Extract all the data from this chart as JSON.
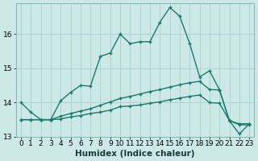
{
  "xlabel": "Humidex (Indice chaleur)",
  "background_color": "#cce9e5",
  "grid_color": "#aad4cf",
  "line_color": "#1a7a6e",
  "x_values": [
    0,
    1,
    2,
    3,
    4,
    5,
    6,
    7,
    8,
    9,
    10,
    11,
    12,
    13,
    14,
    15,
    16,
    17,
    18,
    19,
    20,
    21,
    22,
    23
  ],
  "line1": [
    14.0,
    13.72,
    13.5,
    13.5,
    14.05,
    14.3,
    14.5,
    14.48,
    15.35,
    15.45,
    16.0,
    15.72,
    15.78,
    15.78,
    16.35,
    16.78,
    16.52,
    15.72,
    14.75,
    14.93,
    14.37,
    13.47,
    13.08,
    13.38
  ],
  "line2": [
    13.5,
    13.5,
    13.5,
    13.5,
    13.6,
    13.68,
    13.75,
    13.82,
    13.92,
    14.02,
    14.12,
    14.18,
    14.25,
    14.32,
    14.38,
    14.45,
    14.52,
    14.58,
    14.62,
    14.38,
    14.37,
    13.47,
    13.38,
    13.38
  ],
  "line3": [
    13.5,
    13.5,
    13.5,
    13.5,
    13.52,
    13.58,
    13.62,
    13.68,
    13.72,
    13.78,
    13.88,
    13.9,
    13.93,
    13.98,
    14.02,
    14.08,
    14.13,
    14.18,
    14.22,
    14.0,
    13.98,
    13.47,
    13.35,
    13.35
  ],
  "ylim": [
    13.0,
    16.9
  ],
  "ytick_vals": [
    13,
    14,
    15,
    16
  ],
  "xtick_vals": [
    0,
    1,
    2,
    3,
    4,
    5,
    6,
    7,
    8,
    9,
    10,
    11,
    12,
    13,
    14,
    15,
    16,
    17,
    18,
    19,
    20,
    21,
    22,
    23
  ],
  "tick_fontsize": 6.5,
  "xlabel_fontsize": 7.5
}
